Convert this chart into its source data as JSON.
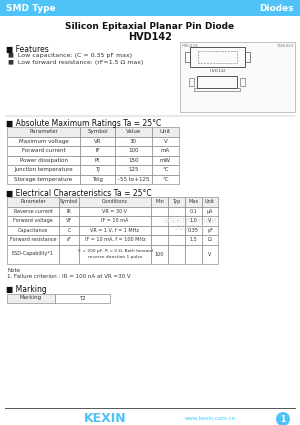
{
  "title_bar_color": "#4FC3F7",
  "title_bar_text_left": "SMD Type",
  "title_bar_text_right": "Diodes",
  "main_title": "Silicon Epitaxial Planar Pin Diode",
  "subtitle": "HVD142",
  "features_header": "■ Features",
  "features": [
    "■  Low capacitance: (C = 0.35 pF max)",
    "■  Low forward resistance: (rF=1.5 Ω max)"
  ],
  "abs_max_header": "■ Absolute Maximum Ratings Ta = 25°C",
  "abs_max_cols": [
    "Parameter",
    "Symbol",
    "Value",
    "Unit"
  ],
  "abs_max_rows": [
    [
      "Maximum voltage",
      "VR",
      "30",
      "V"
    ],
    [
      "Forward current",
      "IF",
      "100",
      "mA"
    ],
    [
      "Power dissipation",
      "Pt",
      "150",
      "mW"
    ],
    [
      "Junction temperature",
      "TJ",
      "125",
      "°C"
    ],
    [
      "Storage temperature",
      "Tstg",
      "-55 to+125",
      "°C"
    ]
  ],
  "elec_header": "■ Electrical Characteristics Ta = 25°C",
  "elec_cols": [
    "Parameter",
    "Symbol",
    "Conditions",
    "Min",
    "Typ",
    "Max",
    "Unit"
  ],
  "elec_rows": [
    [
      "Reverse current",
      "IR",
      "VR = 30 V",
      "",
      "",
      "0.1",
      "μA"
    ],
    [
      "Forward voltage",
      "VF",
      "IF = 10 mA",
      "",
      "",
      "1.0",
      "V"
    ],
    [
      "Capacitance",
      "C",
      "VR = 1 V, f = 1 MHz",
      "",
      "",
      "0.35",
      "pF"
    ],
    [
      "Forward resistance",
      "rF",
      "IF = 10 mA, f = 100 MHz",
      "",
      "",
      "1.5",
      "Ω"
    ],
    [
      "ESD-Capability*1",
      "",
      "C = 200 pF, R = 0 Ω, Both forward\nreverse direction 1 pulse",
      "100",
      "",
      "",
      "V"
    ]
  ],
  "note_line1": "Note",
  "note_line2": "1. Failure criterion : IR = 100 nA at VR =30 V",
  "marking_header": "■ Marking",
  "marking_label": "Marking",
  "marking_value": "T2",
  "footer_logo": "KEXIN",
  "footer_url": "www.kexin.com.cn",
  "footer_circle_num": "1",
  "bg_color": "#FFFFFF",
  "watermark": "E L E K T R O N N Y J    P O R T A L"
}
